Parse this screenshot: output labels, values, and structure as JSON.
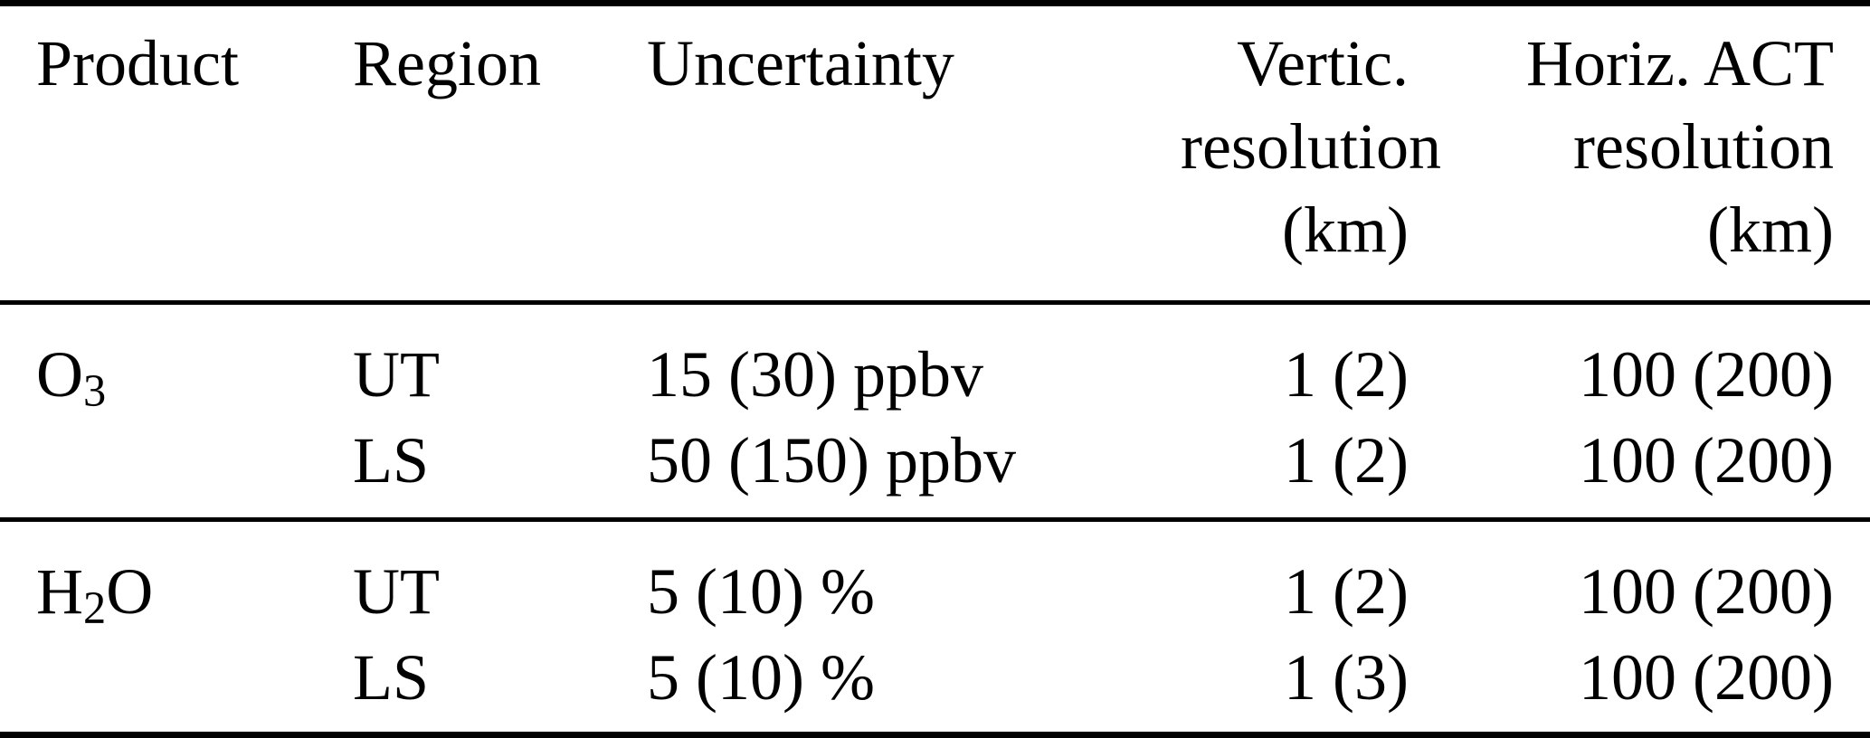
{
  "table": {
    "header": {
      "product": "Product",
      "region": "Region",
      "uncertainty": "Uncertainty",
      "vertical_res": {
        "line1": "Vertic.",
        "line2": "resolution",
        "line3": "(km)"
      },
      "horizontal_res": {
        "line1": "Horiz. ACT",
        "line2": "resolution",
        "line3": "(km)"
      }
    },
    "groups": [
      {
        "product": {
          "base": "O",
          "sub": "3",
          "suffix": ""
        },
        "rows": [
          {
            "region": "UT",
            "uncertainty": "15 (30) ppbv",
            "vertical": "1 (2)",
            "horizontal": "100 (200)"
          },
          {
            "region": "LS",
            "uncertainty": "50 (150) ppbv",
            "vertical": "1 (2)",
            "horizontal": "100 (200)"
          }
        ]
      },
      {
        "product": {
          "base": "H",
          "sub": "2",
          "suffix": "O"
        },
        "rows": [
          {
            "region": "UT",
            "uncertainty": "5 (10) %",
            "vertical": "1 (2)",
            "horizontal": "100 (200)"
          },
          {
            "region": "LS",
            "uncertainty": "5 (10) %",
            "vertical": "1 (3)",
            "horizontal": "100 (200)"
          }
        ]
      }
    ]
  },
  "colors": {
    "background": "#ffffff",
    "text": "#000000",
    "rule": "#000000"
  },
  "chart_data": {
    "type": "table",
    "columns": [
      "Product",
      "Region",
      "Uncertainty",
      "Vertic. resolution (km)",
      "Horiz. ACT resolution (km)"
    ],
    "rows": [
      [
        "O3",
        "UT",
        "15 (30) ppbv",
        "1 (2)",
        "100 (200)"
      ],
      [
        "O3",
        "LS",
        "50 (150) ppbv",
        "1 (2)",
        "100 (200)"
      ],
      [
        "H2O",
        "UT",
        "5 (10) %",
        "1 (2)",
        "100 (200)"
      ],
      [
        "H2O",
        "LS",
        "5 (10) %",
        "1 (3)",
        "100 (200)"
      ]
    ]
  }
}
